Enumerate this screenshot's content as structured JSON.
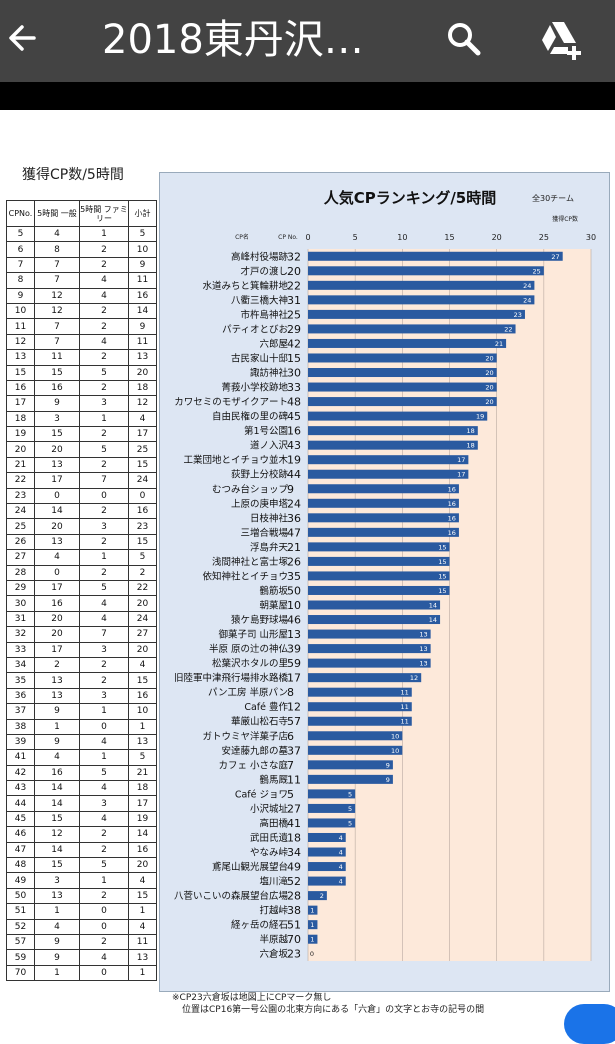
{
  "appbar": {
    "title": "2018東丹沢…"
  },
  "table": {
    "title": "獲得CP数/5時間",
    "headers": [
      "CPNo.",
      "5時間 一般",
      "5時間 ファミリー",
      "小計"
    ],
    "rows": [
      [
        "5",
        "4",
        "1",
        "5"
      ],
      [
        "6",
        "8",
        "2",
        "10"
      ],
      [
        "7",
        "7",
        "2",
        "9"
      ],
      [
        "8",
        "7",
        "4",
        "11"
      ],
      [
        "9",
        "12",
        "4",
        "16"
      ],
      [
        "10",
        "12",
        "2",
        "14"
      ],
      [
        "11",
        "7",
        "2",
        "9"
      ],
      [
        "12",
        "7",
        "4",
        "11"
      ],
      [
        "13",
        "11",
        "2",
        "13"
      ],
      [
        "15",
        "15",
        "5",
        "20"
      ],
      [
        "16",
        "16",
        "2",
        "18"
      ],
      [
        "17",
        "9",
        "3",
        "12"
      ],
      [
        "18",
        "3",
        "1",
        "4"
      ],
      [
        "19",
        "15",
        "2",
        "17"
      ],
      [
        "20",
        "20",
        "5",
        "25"
      ],
      [
        "21",
        "13",
        "2",
        "15"
      ],
      [
        "22",
        "17",
        "7",
        "24"
      ],
      [
        "23",
        "0",
        "0",
        "0"
      ],
      [
        "24",
        "14",
        "2",
        "16"
      ],
      [
        "25",
        "20",
        "3",
        "23"
      ],
      [
        "26",
        "13",
        "2",
        "15"
      ],
      [
        "27",
        "4",
        "1",
        "5"
      ],
      [
        "28",
        "0",
        "2",
        "2"
      ],
      [
        "29",
        "17",
        "5",
        "22"
      ],
      [
        "30",
        "16",
        "4",
        "20"
      ],
      [
        "31",
        "20",
        "4",
        "24"
      ],
      [
        "32",
        "20",
        "7",
        "27"
      ],
      [
        "33",
        "17",
        "3",
        "20"
      ],
      [
        "34",
        "2",
        "2",
        "4"
      ],
      [
        "35",
        "13",
        "2",
        "15"
      ],
      [
        "36",
        "13",
        "3",
        "16"
      ],
      [
        "37",
        "9",
        "1",
        "10"
      ],
      [
        "38",
        "1",
        "0",
        "1"
      ],
      [
        "39",
        "9",
        "4",
        "13"
      ],
      [
        "41",
        "4",
        "1",
        "5"
      ],
      [
        "42",
        "16",
        "5",
        "21"
      ],
      [
        "43",
        "14",
        "4",
        "18"
      ],
      [
        "44",
        "14",
        "3",
        "17"
      ],
      [
        "45",
        "15",
        "4",
        "19"
      ],
      [
        "46",
        "12",
        "2",
        "14"
      ],
      [
        "47",
        "14",
        "2",
        "16"
      ],
      [
        "48",
        "15",
        "5",
        "20"
      ],
      [
        "49",
        "3",
        "1",
        "4"
      ],
      [
        "50",
        "13",
        "2",
        "15"
      ],
      [
        "51",
        "1",
        "0",
        "1"
      ],
      [
        "52",
        "4",
        "0",
        "4"
      ],
      [
        "57",
        "9",
        "2",
        "11"
      ],
      [
        "59",
        "9",
        "4",
        "13"
      ],
      [
        "70",
        "1",
        "0",
        "1"
      ]
    ]
  },
  "chart_data": {
    "type": "bar",
    "title": "人気CPランキング/5時間",
    "subtitle": "全30チーム",
    "value_label": "獲得CP数",
    "col_name_label": "CP名",
    "col_no_label": "CP No.",
    "xlim": [
      0,
      30
    ],
    "xticks": [
      "0",
      "5",
      "10",
      "15",
      "20",
      "25",
      "30"
    ],
    "bar_color": "#2a5aa0",
    "bg_color": "#fde9da",
    "bars": [
      {
        "name": "高峰村役場跡",
        "no": "32",
        "value": 27
      },
      {
        "name": "才戸の渡し",
        "no": "20",
        "value": 25
      },
      {
        "name": "水道みちと箕輪耕地",
        "no": "22",
        "value": 24
      },
      {
        "name": "八衢三橋大神",
        "no": "31",
        "value": 24
      },
      {
        "name": "市杵島神社",
        "no": "25",
        "value": 23
      },
      {
        "name": "パティオとびお",
        "no": "29",
        "value": 22
      },
      {
        "name": "六郎屋",
        "no": "42",
        "value": 21
      },
      {
        "name": "古民家山十邸",
        "no": "15",
        "value": 20
      },
      {
        "name": "諏訪神社",
        "no": "30",
        "value": 20
      },
      {
        "name": "菁莪小学校跡地",
        "no": "33",
        "value": 20
      },
      {
        "name": "カワセミのモザイクアート",
        "no": "48",
        "value": 20
      },
      {
        "name": "自由民権の里の碑",
        "no": "45",
        "value": 19
      },
      {
        "name": "第1号公園",
        "no": "16",
        "value": 18
      },
      {
        "name": "道ノ入沢",
        "no": "43",
        "value": 18
      },
      {
        "name": "工業団地とイチョウ並木",
        "no": "19",
        "value": 17
      },
      {
        "name": "荻野上分校跡",
        "no": "44",
        "value": 17
      },
      {
        "name": "むつみ台ショップ",
        "no": "9",
        "value": 16
      },
      {
        "name": "上原の庚申塔",
        "no": "24",
        "value": 16
      },
      {
        "name": "日枝神社",
        "no": "36",
        "value": 16
      },
      {
        "name": "三増合戦場",
        "no": "47",
        "value": 16
      },
      {
        "name": "浮島弁天",
        "no": "21",
        "value": 15
      },
      {
        "name": "浅間神社と富士塚",
        "no": "26",
        "value": 15
      },
      {
        "name": "依知神社とイチョウ",
        "no": "35",
        "value": 15
      },
      {
        "name": "鶴筋坂",
        "no": "50",
        "value": 15
      },
      {
        "name": "朝菓屋",
        "no": "10",
        "value": 14
      },
      {
        "name": "猿ケ島野球場",
        "no": "46",
        "value": 14
      },
      {
        "name": "御菓子司 山形屋",
        "no": "13",
        "value": 13
      },
      {
        "name": "半原 原の辻の神仏",
        "no": "39",
        "value": 13
      },
      {
        "name": "松葉沢ホタルの里",
        "no": "59",
        "value": 13
      },
      {
        "name": "旧陸軍中津飛行場排水路橋",
        "no": "17",
        "value": 12
      },
      {
        "name": "パン工房 半原パン",
        "no": "8",
        "value": 11
      },
      {
        "name": "Café 豊作",
        "no": "12",
        "value": 11
      },
      {
        "name": "華厳山松石寺",
        "no": "57",
        "value": 11
      },
      {
        "name": "ガトウミヤ洋菓子店",
        "no": "6",
        "value": 10
      },
      {
        "name": "安達藤九郎の墓",
        "no": "37",
        "value": 10
      },
      {
        "name": "カフェ 小さな庭",
        "no": "7",
        "value": 9
      },
      {
        "name": "鶴馬厩",
        "no": "11",
        "value": 9
      },
      {
        "name": "Café ジョワ",
        "no": "5",
        "value": 5
      },
      {
        "name": "小沢城址",
        "no": "27",
        "value": 5
      },
      {
        "name": "高田橋",
        "no": "41",
        "value": 5
      },
      {
        "name": "武田氏遺",
        "no": "18",
        "value": 4
      },
      {
        "name": "やなみ峠",
        "no": "34",
        "value": 4
      },
      {
        "name": "鳶尾山観光展望台",
        "no": "49",
        "value": 4
      },
      {
        "name": "塩川滝",
        "no": "52",
        "value": 4
      },
      {
        "name": "八菅いこいの森展望台広場",
        "no": "28",
        "value": 2
      },
      {
        "name": "打越峠",
        "no": "38",
        "value": 1
      },
      {
        "name": "経ヶ岳の経石",
        "no": "51",
        "value": 1
      },
      {
        "name": "半原越",
        "no": "70",
        "value": 1
      },
      {
        "name": "六倉坂",
        "no": "23",
        "value": 0
      }
    ]
  },
  "note": {
    "line1": "※CP23六倉坂は地図上にCPマーク無し",
    "line2": "位置はCP16第一号公園の北東方向にある「六倉」の文字とお寺の記号の間"
  }
}
